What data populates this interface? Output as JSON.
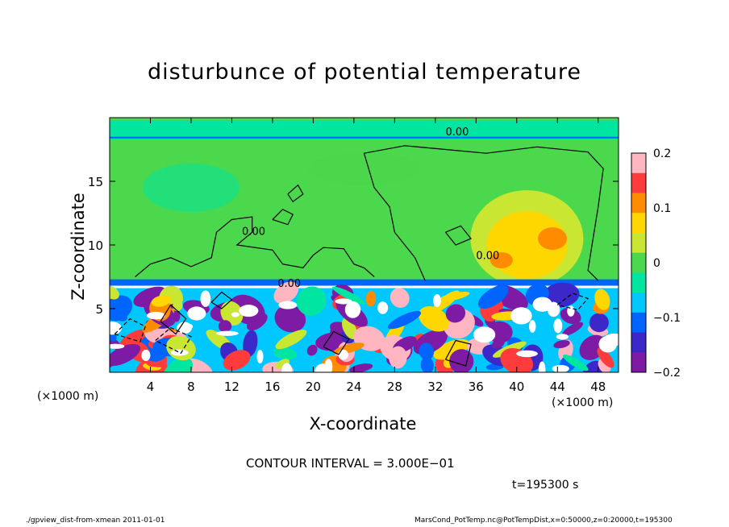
{
  "chart_data": {
    "type": "heatmap",
    "title": "disturbunce of potential temperature",
    "xlabel": "X-coordinate",
    "ylabel": "Z-coordinate",
    "x_unit_label": "(×1000 m)",
    "x_unit_label_right": "(×1000 m)",
    "xlim": [
      0,
      50
    ],
    "ylim": [
      0,
      20
    ],
    "x_ticks": [
      4,
      8,
      12,
      16,
      20,
      24,
      28,
      32,
      36,
      40,
      44,
      48
    ],
    "y_ticks": [
      5,
      10,
      15
    ],
    "colorbar": {
      "range": [
        -0.2,
        0.2
      ],
      "tick_values": [
        0.2,
        0.1,
        0,
        -0.1,
        -0.2
      ],
      "tick_labels": [
        "0.2",
        "0.1",
        "0",
        "−0.1",
        "−0.2"
      ],
      "colors": [
        "#ffb6c1",
        "#ff3b3b",
        "#ff8c00",
        "#ffd700",
        "#c8e632",
        "#4cd84c",
        "#00e6a0",
        "#00c8ff",
        "#0064ff",
        "#3c28c8",
        "#7d1ba5"
      ]
    },
    "contour_interval_text": "CONTOUR INTERVAL = 3.000E−01",
    "contour_labels": [
      "0.00",
      "0.00",
      "0.00",
      "0.00"
    ],
    "time_label": "t=195300 s",
    "regions": [
      {
        "name": "upper-stable-layer",
        "z_range": [
          7,
          19
        ],
        "value": 0.0
      },
      {
        "name": "warm-anomaly",
        "x_center": 41,
        "z_center": 10,
        "value": 0.08
      },
      {
        "name": "lower-convective-layer",
        "z_range": [
          0,
          7
        ],
        "value_range": [
          -0.2,
          0.2
        ]
      }
    ]
  },
  "footer": {
    "left": "./gpview_dist-from-xmean  2011-01-01",
    "right": "MarsCond_PotTemp.nc@PotTempDist,x=0:50000,z=0:20000,t=195300"
  },
  "colors": {
    "background": "#ffffff",
    "base_field": "#4cd84c"
  }
}
